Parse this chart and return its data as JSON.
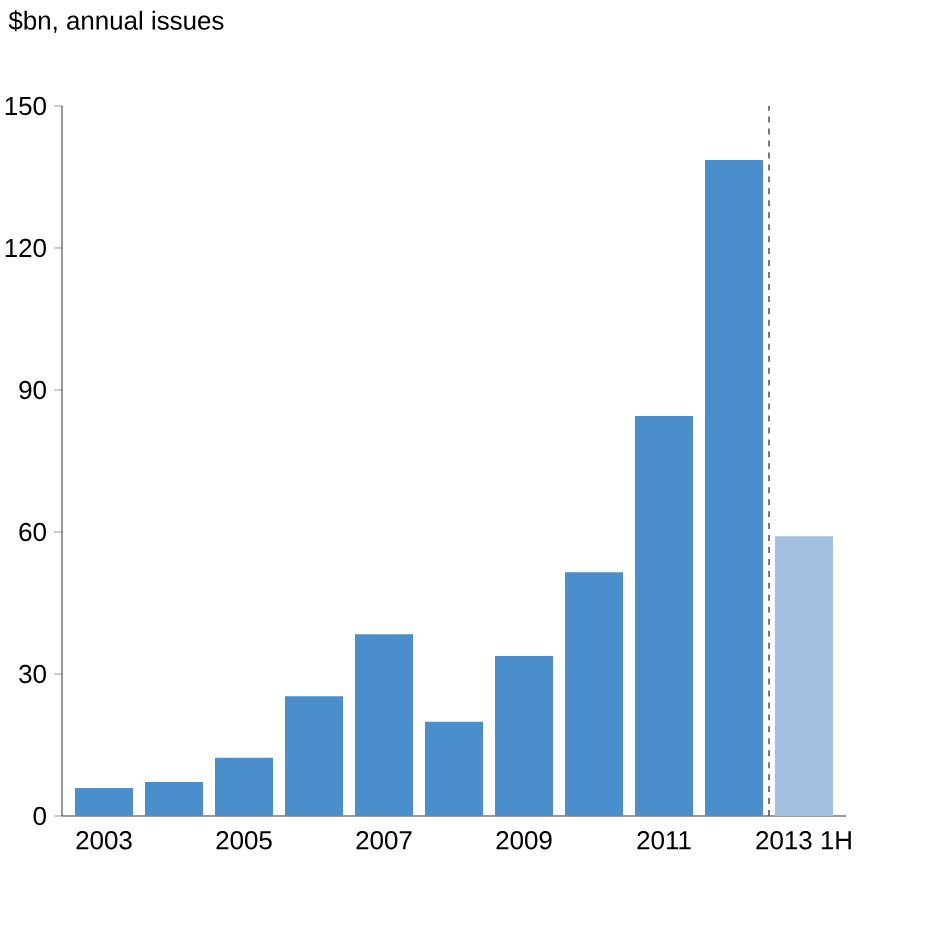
{
  "chart_data": {
    "type": "bar",
    "ylabel": "$bn, annual issues",
    "categories": [
      "2003",
      null,
      "2005",
      null,
      "2007",
      null,
      "2009",
      null,
      "2011",
      null,
      "2013 1H"
    ],
    "values": [
      5.9,
      7.2,
      12.3,
      25.3,
      38.4,
      19.9,
      33.8,
      51.5,
      84.5,
      138.6,
      59.1
    ],
    "colors": [
      "#4a8fcc",
      "#4a8fcc",
      "#4a8fcc",
      "#4a8fcc",
      "#4a8fcc",
      "#4a8fcc",
      "#4a8fcc",
      "#4a8fcc",
      "#4a8fcc",
      "#4a8fcc",
      "#a3bfe2"
    ],
    "ylim": [
      0,
      150
    ],
    "yticks": [
      0,
      30,
      60,
      90,
      120,
      150
    ]
  }
}
